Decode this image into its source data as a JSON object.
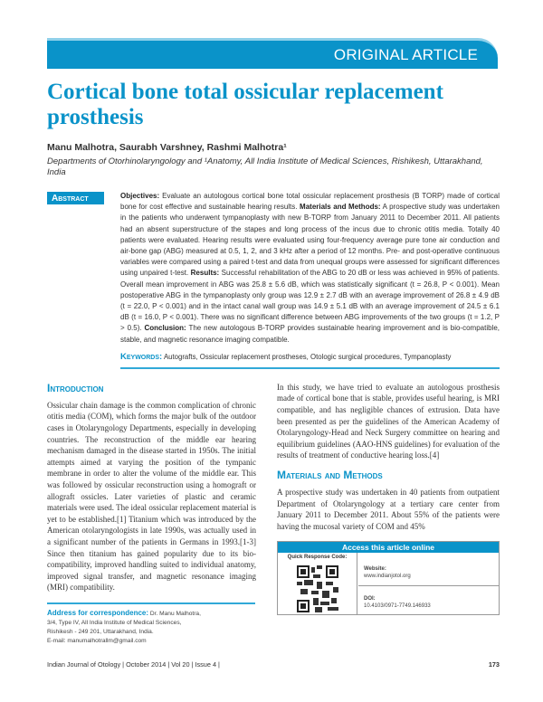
{
  "banner": "ORIGINAL ARTICLE",
  "title": "Cortical bone total ossicular replacement prosthesis",
  "authors": "Manu Malhotra, Saurabh Varshney, Rashmi Malhotra¹",
  "affiliation": "Departments of Otorhinolaryngology and ¹Anatomy, All India Institute of Medical Sciences, Rishikesh, Uttarakhand, India",
  "abstract": {
    "label": "Abstract",
    "sections": [
      {
        "label": "Objectives:",
        "text": " Evaluate an autologous cortical bone total ossicular replacement prosthesis (B TORP) made of cortical bone for cost effective and sustainable hearing results. "
      },
      {
        "label": "Materials and Methods:",
        "text": " A prospective study was undertaken in the patients who underwent tympanoplasty with new B-TORP from January 2011 to December 2011. All patients had an absent superstructure of the stapes and long process of the incus due to chronic otitis media. Totally 40 patients were evaluated. Hearing results were evaluated using four-frequency average pure tone air conduction and air-bone gap (ABG) measured at 0.5, 1, 2, and 3 kHz after a period of 12 months. Pre- and post-operative continuous variables were compared using a paired t-test and data from unequal groups were assessed for significant differences using unpaired t-test. "
      },
      {
        "label": "Results:",
        "text": " Successful rehabilitation of the ABG to 20 dB or less was achieved in 95% of patients. Overall mean improvement in ABG was 25.8 ± 5.6 dB, which was statistically significant (t = 26.8, P < 0.001). Mean postoperative ABG in the tympanoplasty only group was 12.9 ± 2.7 dB with an average improvement of 26.8 ± 4.9 dB (t = 22.0, P < 0.001) and in the intact canal wall group was 14.9 ± 5.1 dB with an average improvement of 24.5 ± 6.1 dB (t = 16.0, P < 0.001). There was no significant difference between ABG improvements of the two groups (t = 1.2, P > 0.5). "
      },
      {
        "label": "Conclusion:",
        "text": " The new autologous B-TORP provides sustainable hearing improvement and is bio-compatible, stable, and magnetic resonance imaging compatible."
      }
    ]
  },
  "keywords": {
    "label": "Keywords:",
    "text": " Autografts, Ossicular replacement prostheses, Otologic surgical procedures, Tympanoplasty"
  },
  "introduction": {
    "heading": "Introduction",
    "text": "Ossicular chain damage is the common complication of chronic otitis media (COM), which forms the major bulk of the outdoor cases in Otolaryngology Departments, especially in developing countries. The reconstruction of the middle ear hearing mechanism damaged in the disease started in 1950s. The initial attempts aimed at varying the position of the tympanic membrane in order to alter the volume of the middle ear. This was followed by ossicular reconstruction using a homograft or allograft ossicles. Later varieties of plastic and ceramic materials were used. The ideal ossicular replacement material is yet to be established.[1] Titanium which was introduced by the American otolaryngologists in late 1990s, was actually used in a significant number of the patients in Germans in 1993.[1-3] Since then titanium has gained popularity due to its bio-compatibility, improved handling suited to individual anatomy, improved signal transfer, and magnetic resonance imaging (MRI) compatibility."
  },
  "right_intro": "In this study, we have tried to evaluate an autologous prosthesis made of cortical bone that is stable, provides useful hearing, is MRI compatible, and has negligible chances of extrusion. Data have been presented as per the guidelines of the American Academy of Otolaryngology-Head and Neck Surgery committee on hearing and equilibrium guidelines (AAO-HNS guidelines) for evaluation of the results of treatment of conductive hearing loss.[4]",
  "methods": {
    "heading": "Materials and Methods",
    "text": "A prospective study was undertaken in 40 patients from outpatient Department of Otolaryngology at a tertiary care center from January 2011 to December 2011. About 55% of the patients were having the mucosal variety of COM and 45%"
  },
  "access": {
    "heading": "Access this article online",
    "qr_label": "Quick Response Code:",
    "website_label": "Website:",
    "website": "www.indianjotol.org",
    "doi_label": "DOI:",
    "doi": "10.4103/0971-7749.146933"
  },
  "correspondence": {
    "label": "Address for correspondence:",
    "lines": [
      " Dr. Manu Malhotra,",
      "3/4, Type IV, All India Institute of Medical Sciences,",
      "Rishikesh - 249 201, Uttarakhand, India.",
      "E-mail: manumalhotrallm@gmail.com"
    ]
  },
  "footer": {
    "journal": "Indian Journal of Otology | October 2014 | Vol 20 | Issue 4 |",
    "page": "173"
  },
  "colors": {
    "accent": "#0a93c9"
  }
}
